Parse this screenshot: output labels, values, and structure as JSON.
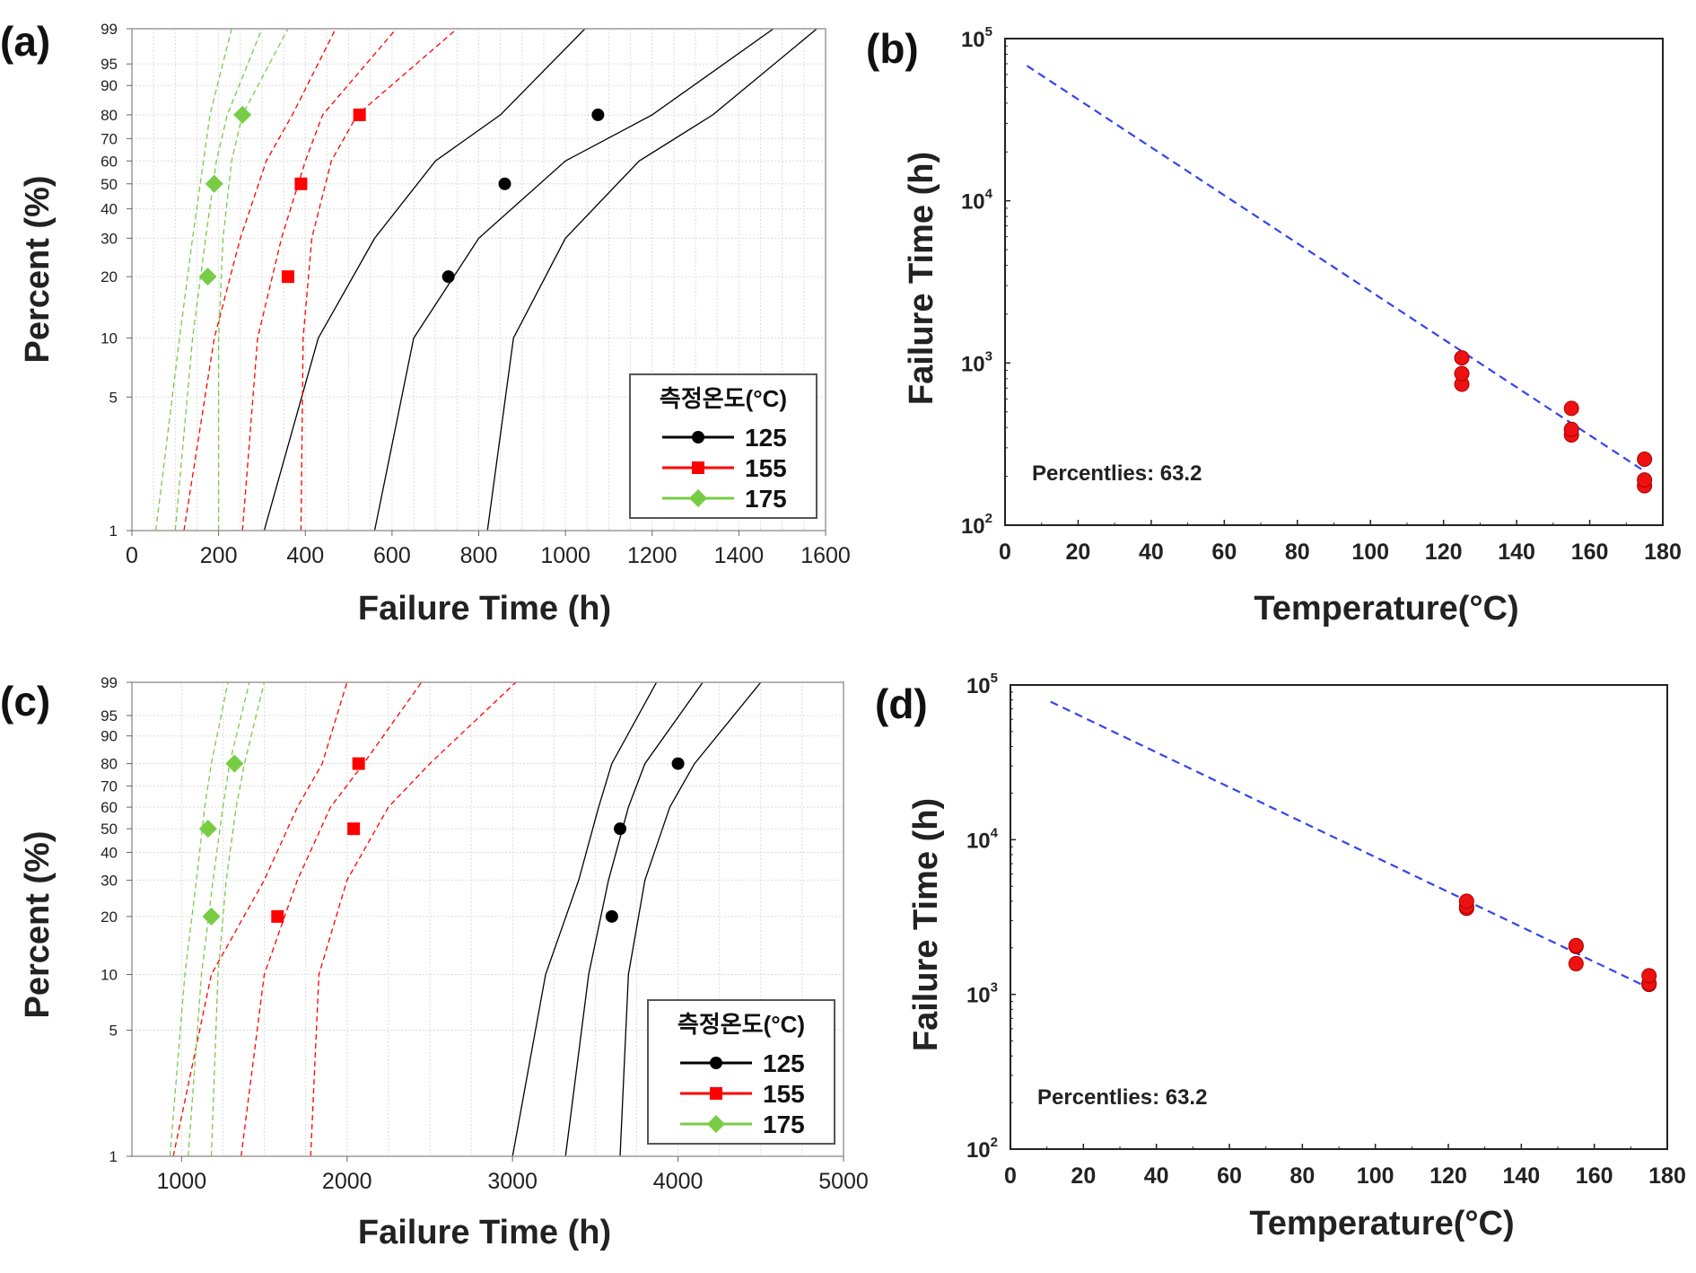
{
  "chart_data": [
    {
      "id": "a",
      "panel_label": "(a)",
      "type": "scatter",
      "subtype": "weibull-probability",
      "xlabel": "Failure Time (h)",
      "ylabel": "Percent (%)",
      "xlim": [
        0,
        1600
      ],
      "xticks": [
        0,
        200,
        400,
        600,
        800,
        1000,
        1200,
        1400,
        1600
      ],
      "ylim": [
        1,
        99
      ],
      "yticks": [
        1,
        5,
        10,
        20,
        30,
        40,
        50,
        60,
        70,
        80,
        90,
        95,
        99
      ],
      "legend": {
        "title": "측정온도(°C)",
        "position": "bottom-right",
        "entries": [
          "125",
          "155",
          "175"
        ]
      },
      "series": [
        {
          "name": "125",
          "color": "#000000",
          "marker": "circle",
          "points": [
            [
              730,
              20
            ],
            [
              860,
              50
            ],
            [
              1075,
              80
            ]
          ],
          "fit": [
            [
              560,
              1
            ],
            [
              650,
              10
            ],
            [
              800,
              30
            ],
            [
              1000,
              60
            ],
            [
              1200,
              80
            ],
            [
              1480,
              99
            ]
          ],
          "bounds": [
            [
              [
                305,
                1
              ],
              [
                430,
                10
              ],
              [
                560,
                30
              ],
              [
                700,
                60
              ],
              [
                850,
                80
              ],
              [
                1045,
                99
              ]
            ],
            [
              [
                820,
                1
              ],
              [
                880,
                10
              ],
              [
                1000,
                30
              ],
              [
                1170,
                60
              ],
              [
                1340,
                80
              ],
              [
                1580,
                99
              ]
            ]
          ]
        },
        {
          "name": "155",
          "color": "#ff0000",
          "marker": "square",
          "points": [
            [
              360,
              20
            ],
            [
              390,
              50
            ],
            [
              525,
              80
            ]
          ],
          "fit": [
            [
              255,
              1
            ],
            [
              290,
              10
            ],
            [
              345,
              30
            ],
            [
              400,
              60
            ],
            [
              440,
              80
            ],
            [
              610,
              99
            ]
          ],
          "bounds": [
            [
              [
                120,
                1
              ],
              [
                190,
                10
              ],
              [
                250,
                30
              ],
              [
                310,
                60
              ],
              [
                370,
                80
              ],
              [
                470,
                99
              ]
            ],
            [
              [
                390,
                1
              ],
              [
                395,
                10
              ],
              [
                415,
                30
              ],
              [
                460,
                60
              ],
              [
                520,
                80
              ],
              [
                750,
                99
              ]
            ]
          ]
        },
        {
          "name": "175",
          "color": "#66cc33",
          "marker": "diamond",
          "points": [
            [
              175,
              20
            ],
            [
              190,
              50
            ],
            [
              255,
              80
            ]
          ],
          "fit": [
            [
              100,
              1
            ],
            [
              140,
              10
            ],
            [
              170,
              30
            ],
            [
              195,
              60
            ],
            [
              220,
              80
            ],
            [
              300,
              99
            ]
          ],
          "bounds": [
            [
              [
                55,
                1
              ],
              [
                110,
                10
              ],
              [
                140,
                30
              ],
              [
                165,
                60
              ],
              [
                180,
                80
              ],
              [
                230,
                99
              ]
            ],
            [
              [
                200,
                1
              ],
              [
                200,
                10
              ],
              [
                210,
                30
              ],
              [
                230,
                60
              ],
              [
                255,
                80
              ],
              [
                360,
                99
              ]
            ]
          ]
        }
      ]
    },
    {
      "id": "b",
      "panel_label": "(b)",
      "type": "scatter",
      "subtype": "log-y with fitted line",
      "xlabel": "Temperature(°C)",
      "ylabel": "Failure Time (h)",
      "xlim": [
        0,
        180
      ],
      "xticks": [
        0,
        20,
        40,
        60,
        80,
        100,
        120,
        140,
        160,
        180
      ],
      "ylim": [
        100,
        100000
      ],
      "ylog": true,
      "yticks": [
        {
          "value": 100,
          "base": "10",
          "exp": "2"
        },
        {
          "value": 1000,
          "base": "10",
          "exp": "3"
        },
        {
          "value": 10000,
          "base": "10",
          "exp": "4"
        },
        {
          "value": 100000,
          "base": "10",
          "exp": "5"
        }
      ],
      "annotation": "Percentlies: 63.2",
      "points": [
        [
          125,
          740
        ],
        [
          125,
          860
        ],
        [
          125,
          1075
        ],
        [
          155,
          360
        ],
        [
          155,
          390
        ],
        [
          155,
          525
        ],
        [
          175,
          175
        ],
        [
          175,
          190
        ],
        [
          175,
          255
        ]
      ],
      "fit_line": [
        [
          6,
          68000
        ],
        [
          175,
          215
        ]
      ]
    },
    {
      "id": "c",
      "panel_label": "(c)",
      "type": "scatter",
      "subtype": "weibull-probability",
      "xlabel": "Failure Time (h)",
      "ylabel": "Percent (%)",
      "xlim": [
        700,
        5000
      ],
      "xticks": [
        1000,
        2000,
        3000,
        4000,
        5000
      ],
      "ylim": [
        1,
        99
      ],
      "yticks": [
        1,
        5,
        10,
        20,
        30,
        40,
        50,
        60,
        70,
        80,
        90,
        95,
        99
      ],
      "legend": {
        "title": "측정온도(°C)",
        "position": "bottom-right",
        "entries": [
          "125",
          "155",
          "175"
        ]
      },
      "series": [
        {
          "name": "125",
          "color": "#000000",
          "marker": "circle",
          "points": [
            [
              3600,
              20
            ],
            [
              3650,
              50
            ],
            [
              4000,
              80
            ]
          ],
          "fit": [
            [
              3320,
              1
            ],
            [
              3460,
              10
            ],
            [
              3580,
              30
            ],
            [
              3700,
              60
            ],
            [
              3800,
              80
            ],
            [
              4150,
              99
            ]
          ],
          "bounds": [
            [
              [
                3000,
                1
              ],
              [
                3200,
                10
              ],
              [
                3400,
                30
              ],
              [
                3520,
                60
              ],
              [
                3600,
                80
              ],
              [
                3870,
                99
              ]
            ],
            [
              [
                3650,
                1
              ],
              [
                3700,
                10
              ],
              [
                3800,
                30
              ],
              [
                3950,
                60
              ],
              [
                4100,
                80
              ],
              [
                4500,
                99
              ]
            ]
          ]
        },
        {
          "name": "155",
          "color": "#ff0000",
          "marker": "square",
          "points": [
            [
              1580,
              20
            ],
            [
              2040,
              50
            ],
            [
              2070,
              80
            ]
          ],
          "fit": [
            [
              1360,
              1
            ],
            [
              1500,
              10
            ],
            [
              1700,
              30
            ],
            [
              1900,
              60
            ],
            [
              2100,
              80
            ],
            [
              2450,
              99
            ]
          ],
          "bounds": [
            [
              [
                950,
                1
              ],
              [
                1180,
                10
              ],
              [
                1500,
                30
              ],
              [
                1700,
                60
              ],
              [
                1850,
                80
              ],
              [
                2000,
                99
              ]
            ],
            [
              [
                1780,
                1
              ],
              [
                1830,
                10
              ],
              [
                2000,
                30
              ],
              [
                2250,
                60
              ],
              [
                2500,
                80
              ],
              [
                3020,
                99
              ]
            ]
          ]
        },
        {
          "name": "175",
          "color": "#66cc33",
          "marker": "diamond",
          "points": [
            [
              1180,
              20
            ],
            [
              1160,
              50
            ],
            [
              1320,
              80
            ]
          ],
          "fit": [
            [
              1040,
              1
            ],
            [
              1120,
              10
            ],
            [
              1190,
              30
            ],
            [
              1250,
              60
            ],
            [
              1290,
              80
            ],
            [
              1410,
              99
            ]
          ],
          "bounds": [
            [
              [
                930,
                1
              ],
              [
                1020,
                10
              ],
              [
                1090,
                30
              ],
              [
                1140,
                60
              ],
              [
                1180,
                80
              ],
              [
                1280,
                99
              ]
            ],
            [
              [
                1180,
                1
              ],
              [
                1220,
                10
              ],
              [
                1270,
                30
              ],
              [
                1330,
                60
              ],
              [
                1380,
                80
              ],
              [
                1500,
                99
              ]
            ]
          ]
        }
      ]
    },
    {
      "id": "d",
      "panel_label": "(d)",
      "type": "scatter",
      "subtype": "log-y with fitted line",
      "xlabel": "Temperature(°C)",
      "ylabel": "Failure Time (h)",
      "xlim": [
        0,
        180
      ],
      "xticks": [
        0,
        20,
        40,
        60,
        80,
        100,
        120,
        140,
        160,
        180
      ],
      "ylim": [
        100,
        100000
      ],
      "ylog": true,
      "yticks": [
        {
          "value": 100,
          "base": "10",
          "exp": "2"
        },
        {
          "value": 1000,
          "base": "10",
          "exp": "3"
        },
        {
          "value": 10000,
          "base": "10",
          "exp": "4"
        },
        {
          "value": 100000,
          "base": "10",
          "exp": "5"
        }
      ],
      "annotation": "Percentlies: 63.2",
      "points": [
        [
          125,
          3600
        ],
        [
          125,
          3700
        ],
        [
          125,
          4000
        ],
        [
          155,
          1580
        ],
        [
          155,
          2040
        ],
        [
          155,
          2070
        ],
        [
          175,
          1160
        ],
        [
          175,
          1180
        ],
        [
          175,
          1320
        ]
      ],
      "fit_line": [
        [
          11,
          78000
        ],
        [
          175,
          1100
        ]
      ]
    }
  ]
}
